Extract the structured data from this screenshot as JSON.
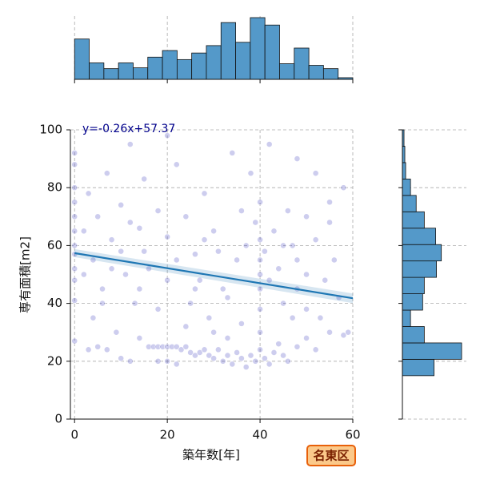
{
  "chart_data": {
    "type": "scatter",
    "annotation": "y=-0.26x+57.37",
    "xlabel": "築年数[年]",
    "ylabel": "専有面積[m2]",
    "badge": "名東区",
    "xlim": [
      -0.9,
      60
    ],
    "ylim": [
      0,
      100
    ],
    "xticks": [
      0,
      20,
      40,
      60
    ],
    "yticks": [
      0,
      20,
      40,
      60,
      80,
      100
    ],
    "grid": true,
    "series": [
      {
        "color": "#1a1ab0",
        "x": [
          0,
          0,
          0,
          0,
          0,
          0,
          0,
          0,
          0,
          0,
          0,
          0,
          2,
          3,
          4,
          5,
          6,
          7,
          8,
          9,
          10,
          11,
          12,
          13,
          14,
          15,
          16,
          17,
          18,
          19,
          20,
          21,
          22,
          23,
          24,
          25,
          26,
          27,
          28,
          29,
          30,
          31,
          32,
          33,
          34,
          35,
          36,
          37,
          38,
          39,
          40,
          41,
          42,
          43,
          44,
          45,
          46,
          48,
          50,
          52,
          55,
          58,
          3,
          5,
          7,
          10,
          12,
          14,
          18,
          20,
          22,
          15,
          18,
          20,
          22,
          24,
          26,
          28,
          30,
          32,
          34,
          35,
          36,
          37,
          38,
          39,
          40,
          40,
          40,
          40,
          40,
          40,
          40,
          41,
          42,
          43,
          44,
          45,
          46,
          47,
          48,
          48,
          50,
          50,
          52,
          53,
          54,
          55,
          56,
          57,
          58,
          59,
          25,
          27,
          29,
          31,
          33,
          10,
          12,
          14,
          16,
          18,
          20,
          22,
          24,
          26,
          28,
          6,
          8,
          4,
          2,
          30,
          33,
          36,
          45,
          47,
          50,
          52,
          55,
          42,
          48,
          20
        ],
        "values": [
          88,
          80,
          75,
          70,
          65,
          60,
          57,
          52,
          48,
          41,
          27,
          92,
          65,
          78,
          55,
          70,
          45,
          85,
          62,
          30,
          74,
          50,
          95,
          40,
          66,
          58,
          25,
          25,
          25,
          25,
          25,
          25,
          25,
          24,
          25,
          23,
          22,
          23,
          24,
          22,
          21,
          24,
          20,
          22,
          19,
          23,
          21,
          18,
          22,
          20,
          24,
          21,
          19,
          23,
          26,
          22,
          20,
          25,
          28,
          24,
          30,
          29,
          24,
          25,
          24,
          21,
          20,
          28,
          20,
          20,
          19,
          83,
          72,
          63,
          88,
          70,
          57,
          78,
          65,
          45,
          92,
          55,
          72,
          60,
          85,
          68,
          62,
          55,
          50,
          45,
          38,
          30,
          75,
          58,
          48,
          65,
          52,
          40,
          72,
          60,
          55,
          45,
          50,
          38,
          62,
          35,
          48,
          68,
          55,
          42,
          80,
          30,
          40,
          48,
          35,
          58,
          42,
          58,
          68,
          45,
          52,
          38,
          48,
          55,
          32,
          45,
          62,
          40,
          52,
          35,
          50,
          30,
          28,
          33,
          60,
          35,
          70,
          85,
          75,
          95,
          90,
          98
        ]
      }
    ],
    "regression": {
      "color": "#1f77b4",
      "x": [
        0,
        60
      ],
      "values": [
        57.37,
        41.77
      ]
    },
    "top_hist": {
      "color": "#5499c9",
      "bins": [
        0,
        3.16,
        6.32,
        9.47,
        12.63,
        15.79,
        18.95,
        22.11,
        25.26,
        28.42,
        31.58,
        34.74,
        37.89,
        41.05,
        44.21,
        47.37,
        50.53,
        53.68,
        56.84,
        60
      ],
      "counts": [
        49,
        20,
        13,
        20,
        14,
        27,
        35,
        24,
        32,
        41,
        69,
        45,
        75,
        66,
        19,
        38,
        17,
        13,
        2
      ]
    },
    "right_hist": {
      "color": "#5499c9",
      "bins": [
        15,
        20.67,
        26.33,
        32,
        37.67,
        43.33,
        49,
        54.67,
        60.33,
        66,
        71.67,
        77.33,
        83,
        88.67,
        94.33,
        100
      ],
      "counts": [
        39,
        73,
        27,
        10,
        25,
        27,
        42,
        48,
        41,
        27,
        17,
        10,
        4,
        3,
        2
      ]
    }
  }
}
